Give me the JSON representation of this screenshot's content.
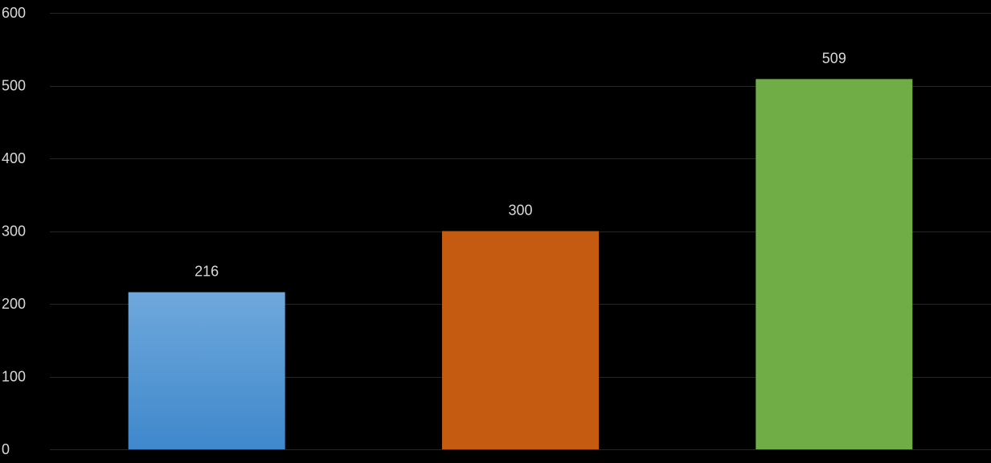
{
  "chart_data": {
    "type": "bar",
    "title": "",
    "xlabel": "",
    "ylabel": "",
    "categories": [
      "",
      "",
      ""
    ],
    "values": [
      216,
      300,
      509
    ],
    "bar_colors": [
      "#5B9BD5",
      "#C55A11",
      "#70AD47"
    ],
    "ylim": [
      0,
      600
    ],
    "y_ticks": [
      0,
      100,
      200,
      300,
      400,
      500,
      600
    ],
    "grid": true,
    "legend": "none",
    "data_labels": [
      "216",
      "300",
      "509"
    ],
    "background": "#000000",
    "gridline_color": "#262626",
    "text_color": "#D9D9D9"
  }
}
